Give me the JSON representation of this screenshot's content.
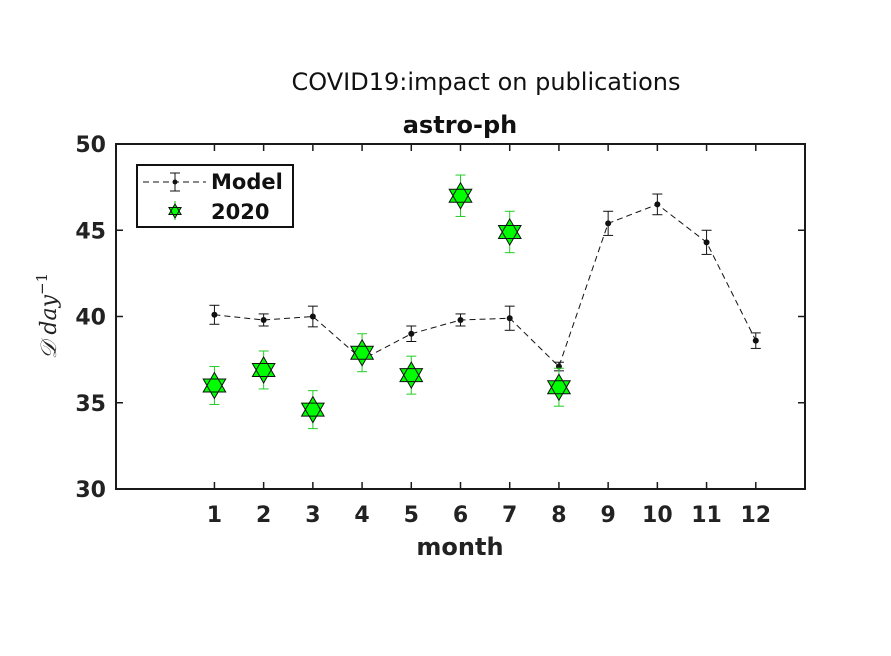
{
  "chart_data": {
    "type": "scatter",
    "supertitle": "COVID19:impact on publications",
    "title": "astro-ph",
    "xlabel": "month",
    "ylabel": "𝒟 day",
    "ylabel_exponent": "−1",
    "xlim": [
      -1,
      13
    ],
    "ylim": [
      30,
      50
    ],
    "x_ticks": [
      1,
      2,
      3,
      4,
      5,
      6,
      7,
      8,
      9,
      10,
      11,
      12
    ],
    "y_ticks": [
      30,
      35,
      40,
      45,
      50
    ],
    "legend_position": "top-left",
    "series": [
      {
        "name": "Model",
        "style": "dashed-line-with-errorbars",
        "color": "#000000",
        "x": [
          1,
          2,
          3,
          4,
          5,
          6,
          7,
          8,
          9,
          10,
          11,
          12
        ],
        "y": [
          40.1,
          39.8,
          40.0,
          37.5,
          39.0,
          39.8,
          39.9,
          37.1,
          45.4,
          46.5,
          44.3,
          38.6
        ],
        "err": [
          0.55,
          0.35,
          0.6,
          0.0,
          0.45,
          0.35,
          0.7,
          0.25,
          0.7,
          0.6,
          0.7,
          0.45
        ]
      },
      {
        "name": "2020",
        "style": "hexagram-markers-with-errorbars",
        "color": "#00ff00",
        "x": [
          1,
          2,
          3,
          4,
          5,
          6,
          7,
          8
        ],
        "y": [
          36.0,
          36.9,
          34.6,
          37.9,
          36.6,
          47.0,
          44.9,
          35.9
        ],
        "err": [
          1.1,
          1.1,
          1.1,
          1.1,
          1.1,
          1.2,
          1.2,
          1.1
        ]
      }
    ]
  }
}
